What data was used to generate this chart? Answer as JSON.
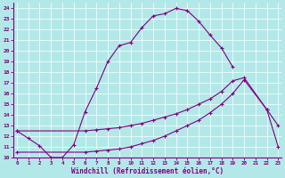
{
  "xlabel": "Windchill (Refroidissement éolien,°C)",
  "background_color": "#b3e8e8",
  "line_color": "#800080",
  "x_ticks": [
    0,
    1,
    2,
    3,
    4,
    5,
    6,
    7,
    8,
    9,
    10,
    11,
    12,
    13,
    14,
    15,
    16,
    17,
    18,
    19,
    20,
    21,
    22,
    23
  ],
  "y_ticks": [
    10,
    11,
    12,
    13,
    14,
    15,
    16,
    17,
    18,
    19,
    20,
    21,
    22,
    23,
    24
  ],
  "xlim": [
    -0.3,
    23.3
  ],
  "ylim": [
    10,
    24.5
  ],
  "series1_x": [
    0,
    1,
    2,
    3,
    4,
    5,
    6,
    7,
    8,
    9,
    10,
    11,
    12,
    13,
    14,
    15,
    16,
    17,
    18,
    19
  ],
  "series1_y": [
    12.5,
    11.8,
    11.1,
    10.0,
    10.0,
    11.2,
    14.3,
    16.5,
    19.0,
    20.5,
    20.8,
    22.2,
    23.3,
    23.5,
    24.0,
    23.8,
    22.8,
    21.5,
    20.3,
    18.5
  ],
  "series2_x": [
    0,
    6,
    7,
    8,
    9,
    10,
    11,
    12,
    13,
    14,
    15,
    16,
    17,
    18,
    19,
    20,
    22,
    23
  ],
  "series2_y": [
    12.5,
    12.5,
    12.6,
    12.7,
    12.8,
    13.0,
    13.2,
    13.5,
    13.8,
    14.1,
    14.5,
    15.0,
    15.5,
    16.2,
    17.2,
    17.5,
    14.5,
    13.0
  ],
  "series3_x": [
    0,
    6,
    7,
    8,
    9,
    10,
    11,
    12,
    13,
    14,
    15,
    16,
    17,
    18,
    19,
    20,
    22,
    23
  ],
  "series3_y": [
    10.5,
    10.5,
    10.6,
    10.7,
    10.8,
    11.0,
    11.3,
    11.6,
    12.0,
    12.5,
    13.0,
    13.5,
    14.2,
    15.0,
    16.0,
    17.3,
    14.5,
    11.0
  ]
}
